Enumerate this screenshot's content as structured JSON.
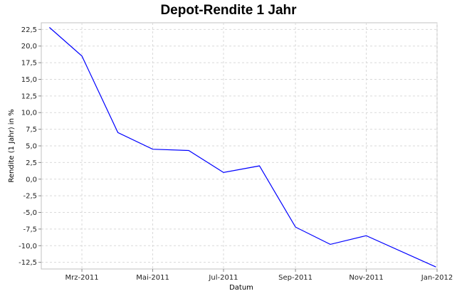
{
  "chart_data": {
    "type": "line",
    "title": "Depot-Rendite 1 Jahr",
    "xlabel": "Datum",
    "ylabel": "Rendite (1 Jahr) in %",
    "grid": true,
    "x_tick_labels": [
      "Mrz-2011",
      "Mai-2011",
      "Jul-2011",
      "Sep-2011",
      "Nov-2011",
      "Jan-2012"
    ],
    "y_tick_labels": [
      "-12,5",
      "-10,0",
      "-7,5",
      "-5,0",
      "-2,5",
      "0,0",
      "2,5",
      "5,0",
      "7,5",
      "10,0",
      "12,5",
      "15,0",
      "17,5",
      "20,0",
      "22,5"
    ],
    "y_ticks": [
      -12.5,
      -10,
      -7.5,
      -5,
      -2.5,
      0,
      2.5,
      5,
      7.5,
      10,
      12.5,
      15,
      17.5,
      20,
      22.5
    ],
    "ylim": [
      -13.5,
      23.5
    ],
    "xlim": [
      "2011-01-25",
      "2012-01-01"
    ],
    "series": [
      {
        "color": "#0000ff",
        "x": [
          "2011-02-01",
          "2011-03-01",
          "2011-04-01",
          "2011-05-01",
          "2011-06-01",
          "2011-07-01",
          "2011-08-01",
          "2011-09-01",
          "2011-10-01",
          "2011-11-01",
          "2011-12-31"
        ],
        "y": [
          22.8,
          18.5,
          7.0,
          4.5,
          4.3,
          1.0,
          2.0,
          -7.2,
          -9.8,
          -8.5,
          -13.2
        ]
      }
    ]
  }
}
